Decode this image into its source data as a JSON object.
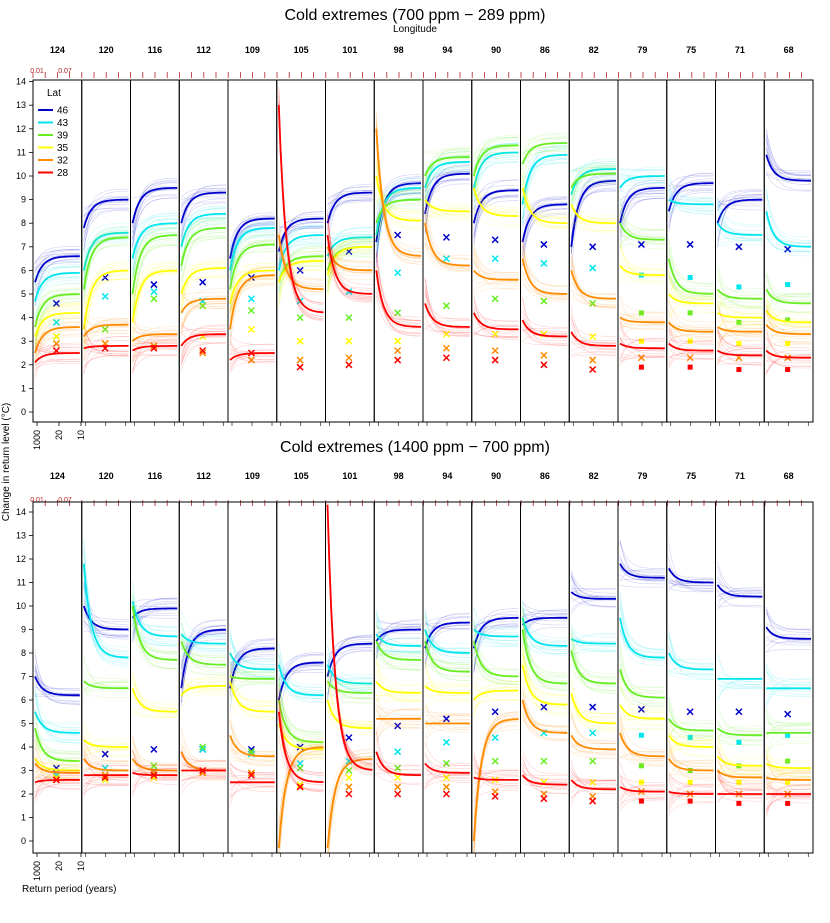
{
  "colors": {
    "46": "#0000cd",
    "43": "#00e5ee",
    "39": "#66ee22",
    "35": "#ffff00",
    "32": "#ff8c00",
    "28": "#ff0000",
    "frame": "#000000",
    "top_ticks": "#b22222"
  },
  "ylabel": "Change in return level (°C)",
  "xlabel": "Return period (years)",
  "longitude_label": "Longitude",
  "top_scale_labels": [
    "0.01",
    "0.07"
  ],
  "return_period_ticks": [
    "1000",
    "20",
    "10"
  ],
  "legend": {
    "title": "Lat",
    "entries": [
      "46",
      "43",
      "39",
      "35",
      "32",
      "28"
    ]
  },
  "chart_data": [
    {
      "type": "line",
      "title": "Cold extremes (700 ppm − 289 ppm)",
      "longitudes": [
        "124",
        "120",
        "116",
        "112",
        "109",
        "105",
        "101",
        "98",
        "94",
        "90",
        "86",
        "82",
        "79",
        "75",
        "71",
        "68"
      ],
      "latitudes": [
        "46",
        "43",
        "39",
        "35",
        "32",
        "28"
      ],
      "ylim": [
        -0.5,
        14.5
      ],
      "yticks": [
        0,
        1,
        2,
        3,
        4,
        5,
        6,
        7,
        8,
        9,
        10,
        11,
        12,
        13,
        14
      ],
      "curve_end": [
        [
          6.6,
          5.9,
          5.0,
          4.2,
          3.6,
          2.5
        ],
        [
          9.0,
          7.6,
          7.4,
          6.0,
          3.7,
          2.8
        ],
        [
          9.5,
          8.0,
          7.5,
          6.0,
          3.3,
          2.8
        ],
        [
          9.3,
          8.4,
          7.8,
          6.1,
          4.8,
          3.3
        ],
        [
          8.2,
          7.8,
          7.1,
          6.0,
          5.8,
          2.5
        ],
        [
          8.2,
          7.5,
          6.6,
          6.4,
          5.2,
          4.2
        ],
        [
          9.3,
          7.4,
          7.0,
          7.0,
          6.0,
          5.0
        ],
        [
          9.7,
          9.5,
          9.0,
          8.1,
          6.6,
          3.6
        ],
        [
          10.1,
          10.6,
          10.8,
          8.5,
          6.2,
          3.6
        ],
        [
          9.4,
          11.0,
          11.3,
          8.3,
          5.6,
          3.5
        ],
        [
          8.8,
          10.9,
          11.4,
          8.0,
          5.0,
          3.2
        ],
        [
          9.8,
          10.3,
          10.1,
          8.0,
          4.8,
          2.8
        ],
        [
          9.5,
          10.0,
          7.3,
          5.8,
          3.8,
          2.7
        ],
        [
          9.7,
          8.8,
          5.0,
          4.6,
          3.4,
          2.6
        ],
        [
          9.0,
          7.5,
          4.8,
          4.0,
          3.4,
          2.4
        ],
        [
          9.8,
          7.0,
          4.6,
          3.8,
          3.3,
          2.3
        ]
      ],
      "curve_start": [
        [
          5.5,
          4.7,
          3.6,
          3.2,
          2.5,
          2.1
        ],
        [
          7.8,
          6.0,
          5.2,
          3.5,
          3.2,
          2.7
        ],
        [
          8.0,
          6.5,
          5.0,
          3.8,
          3.0,
          2.6
        ],
        [
          8.0,
          7.0,
          6.2,
          5.0,
          4.2,
          2.8
        ],
        [
          6.5,
          6.0,
          5.2,
          4.6,
          3.5,
          2.2
        ],
        [
          6.8,
          6.0,
          5.5,
          5.5,
          7.5,
          13.0
        ],
        [
          8.0,
          6.6,
          6.0,
          5.8,
          7.0,
          7.5
        ],
        [
          7.2,
          7.5,
          8.0,
          10.0,
          12.0,
          6.0
        ],
        [
          8.4,
          9.5,
          10.0,
          9.0,
          8.0,
          4.6
        ],
        [
          8.0,
          9.5,
          10.0,
          9.5,
          6.0,
          4.2
        ],
        [
          7.2,
          8.8,
          10.5,
          9.5,
          6.5,
          3.9
        ],
        [
          7.0,
          9.2,
          9.5,
          8.8,
          6.0,
          3.4
        ],
        [
          8.0,
          9.5,
          8.0,
          6.2,
          4.0,
          2.9
        ],
        [
          8.5,
          9.0,
          6.5,
          5.0,
          3.8,
          2.9
        ],
        [
          8.0,
          8.0,
          5.2,
          4.2,
          3.6,
          2.6
        ],
        [
          10.9,
          8.5,
          5.2,
          4.3,
          3.7,
          2.6
        ]
      ],
      "markers": [
        [
          4.6,
          3.8,
          3.2,
          3.2,
          2.9,
          2.6
        ],
        [
          5.7,
          4.9,
          3.5,
          2.9,
          2.9,
          2.7
        ],
        [
          5.4,
          5.1,
          4.8,
          2.8,
          2.8,
          2.7
        ],
        [
          5.5,
          4.7,
          4.5,
          3.2,
          2.5,
          2.6
        ],
        [
          5.7,
          4.8,
          4.3,
          3.5,
          2.2,
          2.5
        ],
        [
          6.0,
          4.7,
          4.0,
          3.0,
          2.2,
          1.9
        ],
        [
          6.8,
          5.1,
          4.0,
          3.0,
          2.3,
          2.0
        ],
        [
          7.5,
          5.9,
          4.2,
          3.0,
          2.6,
          2.2
        ],
        [
          7.4,
          6.5,
          4.5,
          3.3,
          2.7,
          2.3
        ],
        [
          7.3,
          6.5,
          4.8,
          3.3,
          2.6,
          2.2
        ],
        [
          7.1,
          6.3,
          4.7,
          3.3,
          2.4,
          2.0
        ],
        [
          7.0,
          6.1,
          4.6,
          3.2,
          2.2,
          1.8
        ],
        [
          7.1,
          5.8,
          4.2,
          3.0,
          2.3,
          1.9
        ],
        [
          7.1,
          5.7,
          4.2,
          3.0,
          2.3,
          1.9
        ],
        [
          7.0,
          5.3,
          3.8,
          2.9,
          2.3,
          1.8
        ],
        [
          6.9,
          5.4,
          3.9,
          2.9,
          2.3,
          1.8
        ]
      ]
    },
    {
      "type": "line",
      "title": "Cold extremes (1400 ppm − 700 ppm)",
      "longitudes": [
        "124",
        "120",
        "116",
        "112",
        "109",
        "105",
        "101",
        "98",
        "94",
        "90",
        "86",
        "82",
        "79",
        "75",
        "71",
        "68"
      ],
      "latitudes": [
        "46",
        "43",
        "39",
        "35",
        "32",
        "28"
      ],
      "ylim": [
        -0.5,
        14.5
      ],
      "yticks": [
        0,
        1,
        2,
        3,
        4,
        5,
        6,
        7,
        8,
        9,
        10,
        11,
        12,
        13,
        14
      ],
      "curve_end": [
        [
          6.2,
          4.6,
          3.4,
          3.0,
          2.9,
          2.6
        ],
        [
          9.0,
          7.8,
          6.5,
          4.0,
          3.0,
          2.8
        ],
        [
          9.9,
          8.7,
          7.7,
          5.5,
          3.0,
          2.8
        ],
        [
          9.0,
          8.4,
          7.5,
          6.6,
          3.0,
          3.0
        ],
        [
          8.2,
          7.3,
          6.9,
          5.5,
          3.6,
          2.5
        ],
        [
          7.6,
          6.2,
          4.2,
          3.9,
          4.0,
          2.5
        ],
        [
          8.4,
          6.7,
          6.3,
          4.8,
          3.5,
          3.0
        ],
        [
          9.0,
          8.3,
          7.7,
          6.3,
          5.2,
          2.8
        ],
        [
          9.3,
          8.0,
          7.2,
          6.3,
          5.0,
          2.9
        ],
        [
          9.5,
          8.7,
          7.0,
          6.4,
          5.2,
          2.6
        ],
        [
          9.5,
          8.3,
          6.7,
          5.8,
          4.6,
          2.4
        ],
        [
          10.3,
          8.4,
          6.7,
          5.0,
          3.9,
          2.2
        ],
        [
          11.2,
          7.8,
          6.1,
          5.2,
          3.6,
          2.1
        ],
        [
          11.0,
          7.3,
          4.7,
          4.0,
          3.0,
          2.0
        ],
        [
          10.4,
          6.9,
          4.5,
          3.2,
          2.7,
          2.0
        ],
        [
          8.6,
          6.5,
          4.6,
          3.1,
          2.6,
          2.0
        ]
      ],
      "curve_start": [
        [
          7.0,
          5.5,
          4.8,
          3.5,
          3.3,
          2.5
        ],
        [
          10.0,
          11.8,
          6.8,
          4.3,
          3.5,
          2.8
        ],
        [
          9.5,
          10.2,
          10.0,
          6.5,
          3.5,
          2.9
        ],
        [
          6.5,
          8.8,
          8.5,
          6.2,
          3.8,
          3.0
        ],
        [
          6.5,
          8.0,
          7.0,
          6.8,
          4.5,
          2.5
        ],
        [
          6.0,
          7.5,
          6.0,
          5.0,
          -0.3,
          5.5
        ],
        [
          7.0,
          7.5,
          6.8,
          6.0,
          -0.3,
          14.3
        ],
        [
          8.5,
          8.8,
          8.5,
          6.8,
          5.2,
          3.8
        ],
        [
          8.2,
          9.0,
          8.5,
          6.6,
          5.0,
          3.3
        ],
        [
          8.2,
          9.0,
          8.5,
          6.0,
          0.0,
          2.7
        ],
        [
          9.2,
          9.5,
          9.0,
          7.5,
          6.0,
          2.8
        ],
        [
          10.6,
          8.6,
          8.1,
          6.3,
          4.5,
          2.6
        ],
        [
          11.8,
          9.5,
          7.3,
          5.8,
          4.6,
          2.3
        ],
        [
          11.6,
          8.0,
          5.2,
          4.5,
          3.5,
          2.1
        ],
        [
          10.9,
          6.9,
          4.8,
          3.6,
          3.0,
          2.0
        ],
        [
          9.1,
          6.5,
          4.6,
          3.3,
          2.7,
          2.0
        ]
      ],
      "markers": [
        [
          3.1,
          2.8,
          2.7,
          2.7,
          2.6,
          2.6
        ],
        [
          3.7,
          3.1,
          2.8,
          2.6,
          2.8,
          2.7
        ],
        [
          3.9,
          3.0,
          3.2,
          2.7,
          2.9,
          2.8
        ],
        [
          3.9,
          3.9,
          4.0,
          2.9,
          2.9,
          3.0
        ],
        [
          3.9,
          3.7,
          3.8,
          2.9,
          2.9,
          2.8
        ],
        [
          4.0,
          3.3,
          3.1,
          2.4,
          2.3,
          2.3
        ],
        [
          4.4,
          3.4,
          3.0,
          2.7,
          2.3,
          2.0
        ],
        [
          4.9,
          3.8,
          3.1,
          2.7,
          2.3,
          2.0
        ],
        [
          5.2,
          4.2,
          3.3,
          2.7,
          2.3,
          2.0
        ],
        [
          5.5,
          4.4,
          3.4,
          2.6,
          2.1,
          1.9
        ],
        [
          5.7,
          4.6,
          3.4,
          2.5,
          2.0,
          1.8
        ],
        [
          5.7,
          4.6,
          3.4,
          2.5,
          1.9,
          1.7
        ],
        [
          5.6,
          4.5,
          3.2,
          2.5,
          2.1,
          1.7
        ],
        [
          5.5,
          4.4,
          3.0,
          2.5,
          2.0,
          1.7
        ],
        [
          5.5,
          4.2,
          3.2,
          2.5,
          2.0,
          1.6
        ],
        [
          5.4,
          4.5,
          3.4,
          2.5,
          2.0,
          1.6
        ]
      ]
    }
  ]
}
